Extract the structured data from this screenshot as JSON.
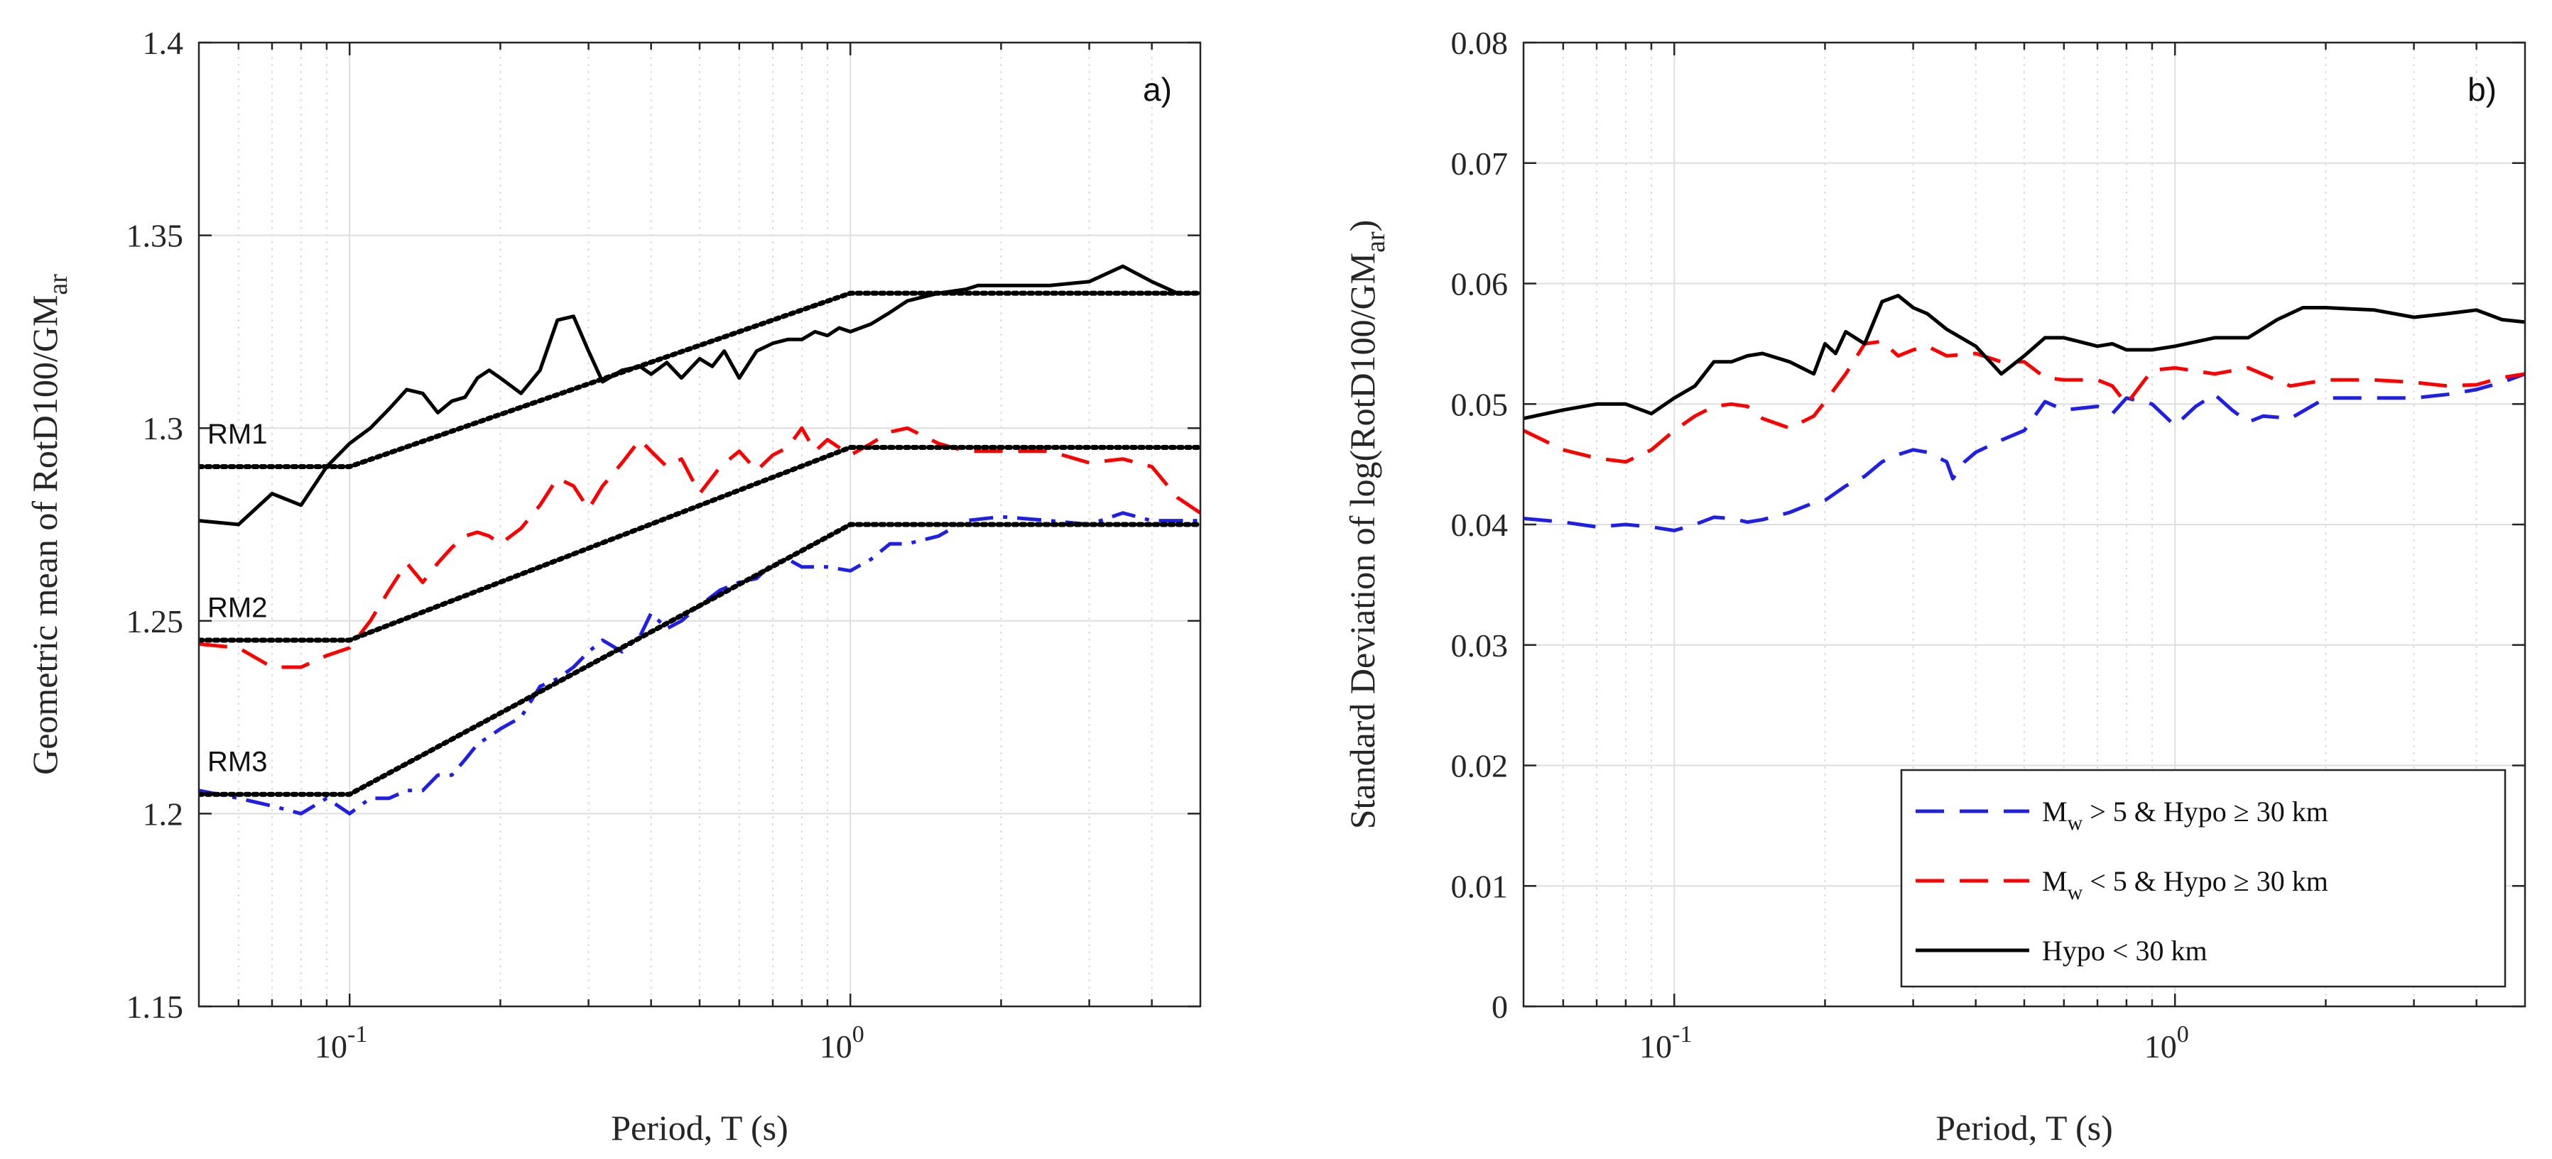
{
  "figure": {
    "panels_note": "two side-by-side log-x line plots"
  },
  "chart_data": [
    {
      "type": "line",
      "panel_label": "a)",
      "xlabel": "Period, T (s)",
      "ylabel_main": "Geometric mean of RotD100/GM",
      "ylabel_sub": "ar",
      "xscale": "log",
      "xlim": [
        0.05,
        5
      ],
      "ylim": [
        1.15,
        1.4
      ],
      "x_ticks": [
        {
          "value": 0.1,
          "base": "10",
          "exp": "-1"
        },
        {
          "value": 1,
          "base": "10",
          "exp": "0"
        }
      ],
      "y_ticks": [
        {
          "value": 1.15,
          "label": "1.15"
        },
        {
          "value": 1.2,
          "label": "1.2"
        },
        {
          "value": 1.25,
          "label": "1.25"
        },
        {
          "value": 1.3,
          "label": "1.3"
        },
        {
          "value": 1.35,
          "label": "1.35"
        },
        {
          "value": 1.4,
          "label": "1.4"
        }
      ],
      "grid": true,
      "series": [
        {
          "name": "Hypo < 30 km",
          "color": "#000000",
          "style": "solid",
          "x": [
            0.05,
            0.06,
            0.07,
            0.08,
            0.09,
            0.1,
            0.11,
            0.12,
            0.13,
            0.14,
            0.15,
            0.16,
            0.17,
            0.18,
            0.19,
            0.2,
            0.22,
            0.24,
            0.26,
            0.28,
            0.3,
            0.32,
            0.35,
            0.38,
            0.4,
            0.43,
            0.46,
            0.5,
            0.53,
            0.56,
            0.6,
            0.65,
            0.7,
            0.75,
            0.8,
            0.85,
            0.9,
            0.95,
            1.0,
            1.1,
            1.2,
            1.3,
            1.5,
            1.7,
            1.8,
            2.0,
            2.5,
            3.0,
            3.5,
            4.0,
            4.5,
            5.0
          ],
          "y": [
            1.276,
            1.275,
            1.283,
            1.28,
            1.29,
            1.296,
            1.3,
            1.305,
            1.31,
            1.309,
            1.304,
            1.307,
            1.308,
            1.313,
            1.315,
            1.313,
            1.309,
            1.315,
            1.328,
            1.329,
            1.32,
            1.312,
            1.315,
            1.316,
            1.314,
            1.317,
            1.313,
            1.318,
            1.316,
            1.32,
            1.313,
            1.32,
            1.322,
            1.323,
            1.323,
            1.325,
            1.324,
            1.326,
            1.325,
            1.327,
            1.33,
            1.333,
            1.335,
            1.336,
            1.337,
            1.337,
            1.337,
            1.338,
            1.342,
            1.338,
            1.335,
            1.335
          ]
        },
        {
          "name": "Mw < 5 & Hypo ≥ 30 km",
          "color": "#ff0000",
          "style": "dashed",
          "x": [
            0.05,
            0.06,
            0.07,
            0.08,
            0.09,
            0.1,
            0.11,
            0.12,
            0.13,
            0.14,
            0.15,
            0.16,
            0.17,
            0.18,
            0.19,
            0.2,
            0.22,
            0.24,
            0.26,
            0.28,
            0.3,
            0.32,
            0.35,
            0.38,
            0.4,
            0.43,
            0.46,
            0.5,
            0.55,
            0.6,
            0.65,
            0.7,
            0.75,
            0.8,
            0.85,
            0.9,
            1.0,
            1.1,
            1.2,
            1.3,
            1.5,
            1.7,
            2.0,
            2.5,
            3.0,
            3.5,
            4.0,
            4.5,
            5.0
          ],
          "y": [
            1.244,
            1.243,
            1.238,
            1.238,
            1.241,
            1.243,
            1.25,
            1.258,
            1.265,
            1.26,
            1.265,
            1.269,
            1.272,
            1.273,
            1.272,
            1.27,
            1.274,
            1.28,
            1.287,
            1.285,
            1.279,
            1.285,
            1.291,
            1.297,
            1.294,
            1.29,
            1.292,
            1.283,
            1.29,
            1.294,
            1.289,
            1.293,
            1.295,
            1.3,
            1.294,
            1.297,
            1.293,
            1.296,
            1.299,
            1.3,
            1.296,
            1.294,
            1.294,
            1.294,
            1.291,
            1.292,
            1.29,
            1.282,
            1.278
          ]
        },
        {
          "name": "Mw > 5 & Hypo ≥ 30 km",
          "color": "#1f1fe6",
          "style": "dashdot",
          "x": [
            0.05,
            0.06,
            0.07,
            0.08,
            0.09,
            0.1,
            0.11,
            0.12,
            0.13,
            0.14,
            0.15,
            0.16,
            0.17,
            0.18,
            0.19,
            0.2,
            0.22,
            0.24,
            0.26,
            0.28,
            0.3,
            0.32,
            0.35,
            0.38,
            0.4,
            0.43,
            0.46,
            0.5,
            0.55,
            0.6,
            0.65,
            0.7,
            0.75,
            0.8,
            0.85,
            0.9,
            1.0,
            1.1,
            1.2,
            1.3,
            1.5,
            1.7,
            2.0,
            2.5,
            3.0,
            3.5,
            4.0,
            4.5,
            5.0
          ],
          "y": [
            1.206,
            1.204,
            1.202,
            1.2,
            1.204,
            1.2,
            1.204,
            1.204,
            1.206,
            1.206,
            1.21,
            1.21,
            1.214,
            1.218,
            1.22,
            1.222,
            1.225,
            1.233,
            1.235,
            1.238,
            1.242,
            1.245,
            1.242,
            1.246,
            1.252,
            1.248,
            1.25,
            1.254,
            1.258,
            1.26,
            1.261,
            1.265,
            1.266,
            1.264,
            1.264,
            1.264,
            1.263,
            1.266,
            1.27,
            1.27,
            1.272,
            1.276,
            1.277,
            1.276,
            1.275,
            1.278,
            1.276,
            1.276,
            1.276
          ]
        },
        {
          "name": "RM1",
          "color": "#000000",
          "style": "dotted",
          "x": [
            0.05,
            0.1,
            1.0,
            5.0
          ],
          "y": [
            1.29,
            1.29,
            1.335,
            1.335
          ]
        },
        {
          "name": "RM2",
          "color": "#000000",
          "style": "dotted",
          "x": [
            0.05,
            0.1,
            1.0,
            5.0
          ],
          "y": [
            1.245,
            1.245,
            1.295,
            1.295
          ]
        },
        {
          "name": "RM3",
          "color": "#000000",
          "style": "dotted",
          "x": [
            0.05,
            0.1,
            1.0,
            5.0
          ],
          "y": [
            1.205,
            1.205,
            1.275,
            1.275
          ]
        }
      ],
      "annotations": [
        {
          "text": "RM1",
          "x": 0.052,
          "y": 1.296
        },
        {
          "text": "RM2",
          "x": 0.052,
          "y": 1.251
        },
        {
          "text": "RM3",
          "x": 0.052,
          "y": 1.211
        }
      ]
    },
    {
      "type": "line",
      "panel_label": "b)",
      "xlabel": "Period, T (s)",
      "ylabel_main": "Standard Deviation of log(RotD100/GM",
      "ylabel_sub": "ar",
      "ylabel_end": ")",
      "xscale": "log",
      "xlim": [
        0.05,
        5
      ],
      "ylim": [
        0,
        0.08
      ],
      "x_ticks": [
        {
          "value": 0.1,
          "base": "10",
          "exp": "-1"
        },
        {
          "value": 1,
          "base": "10",
          "exp": "0"
        }
      ],
      "y_ticks": [
        {
          "value": 0,
          "label": "0"
        },
        {
          "value": 0.01,
          "label": "0.01"
        },
        {
          "value": 0.02,
          "label": "0.02"
        },
        {
          "value": 0.03,
          "label": "0.03"
        },
        {
          "value": 0.04,
          "label": "0.04"
        },
        {
          "value": 0.05,
          "label": "0.05"
        },
        {
          "value": 0.06,
          "label": "0.06"
        },
        {
          "value": 0.07,
          "label": "0.07"
        },
        {
          "value": 0.08,
          "label": "0.08"
        }
      ],
      "grid": true,
      "legend": {
        "position": "bottom-right",
        "entries": [
          {
            "series": "Mw > 5 & Hypo ≥ 30 km",
            "M": "M",
            "sub": "w",
            "rest": " >  5 & Hypo ≥  30 km"
          },
          {
            "series": "Mw < 5 & Hypo ≥ 30 km",
            "M": "M",
            "sub": "w",
            "rest": " <  5 & Hypo ≥  30 km"
          },
          {
            "series": "Hypo < 30 km",
            "M": "",
            "sub": "",
            "rest": "Hypo <  30 km"
          }
        ]
      },
      "series": [
        {
          "name": "Mw > 5 & Hypo ≥ 30 km",
          "color": "#1f1fe6",
          "style": "dashed",
          "x": [
            0.05,
            0.06,
            0.07,
            0.08,
            0.09,
            0.1,
            0.11,
            0.12,
            0.13,
            0.14,
            0.15,
            0.17,
            0.19,
            0.2,
            0.22,
            0.24,
            0.26,
            0.28,
            0.3,
            0.32,
            0.35,
            0.36,
            0.38,
            0.4,
            0.45,
            0.5,
            0.55,
            0.6,
            0.7,
            0.75,
            0.8,
            0.9,
            1.0,
            1.1,
            1.2,
            1.3,
            1.4,
            1.5,
            1.7,
            2.0,
            2.5,
            3.0,
            3.5,
            4.0,
            4.5,
            5.0
          ],
          "y": [
            0.0405,
            0.0402,
            0.0398,
            0.04,
            0.0398,
            0.0395,
            0.04,
            0.0406,
            0.0405,
            0.0402,
            0.0404,
            0.041,
            0.0418,
            0.042,
            0.0432,
            0.044,
            0.0452,
            0.0458,
            0.0462,
            0.046,
            0.0452,
            0.0438,
            0.0452,
            0.046,
            0.047,
            0.0478,
            0.0502,
            0.0495,
            0.0498,
            0.0492,
            0.0505,
            0.05,
            0.0482,
            0.0498,
            0.0508,
            0.0495,
            0.0485,
            0.049,
            0.0488,
            0.0505,
            0.0505,
            0.0505,
            0.0508,
            0.0512,
            0.0518,
            0.0525
          ]
        },
        {
          "name": "Mw < 5 & Hypo ≥ 30 km",
          "color": "#ff0000",
          "style": "dashed",
          "x": [
            0.05,
            0.06,
            0.07,
            0.08,
            0.09,
            0.1,
            0.11,
            0.12,
            0.13,
            0.14,
            0.15,
            0.17,
            0.19,
            0.2,
            0.22,
            0.24,
            0.26,
            0.28,
            0.3,
            0.32,
            0.35,
            0.4,
            0.45,
            0.5,
            0.55,
            0.6,
            0.7,
            0.75,
            0.8,
            0.9,
            1.0,
            1.2,
            1.4,
            1.7,
            2.0,
            2.5,
            3.0,
            3.5,
            4.0,
            4.5,
            5.0
          ],
          "y": [
            0.0478,
            0.0462,
            0.0455,
            0.0452,
            0.0462,
            0.0478,
            0.049,
            0.0498,
            0.05,
            0.0498,
            0.0488,
            0.048,
            0.049,
            0.0502,
            0.0525,
            0.055,
            0.0552,
            0.054,
            0.0545,
            0.0548,
            0.054,
            0.0542,
            0.0535,
            0.0535,
            0.0522,
            0.052,
            0.052,
            0.0515,
            0.05,
            0.0528,
            0.053,
            0.0525,
            0.053,
            0.0515,
            0.052,
            0.052,
            0.0518,
            0.0515,
            0.0516,
            0.0522,
            0.0525
          ]
        },
        {
          "name": "Hypo < 30 km",
          "color": "#000000",
          "style": "solid",
          "x": [
            0.05,
            0.06,
            0.07,
            0.08,
            0.09,
            0.1,
            0.11,
            0.12,
            0.13,
            0.14,
            0.15,
            0.17,
            0.19,
            0.2,
            0.21,
            0.22,
            0.24,
            0.26,
            0.28,
            0.3,
            0.32,
            0.35,
            0.4,
            0.45,
            0.5,
            0.55,
            0.6,
            0.7,
            0.75,
            0.8,
            0.9,
            1.0,
            1.2,
            1.4,
            1.6,
            1.8,
            2.0,
            2.5,
            3.0,
            3.5,
            4.0,
            4.5,
            5.0
          ],
          "y": [
            0.0488,
            0.0495,
            0.05,
            0.05,
            0.0492,
            0.0505,
            0.0515,
            0.0535,
            0.0535,
            0.054,
            0.0542,
            0.0535,
            0.0525,
            0.055,
            0.0542,
            0.056,
            0.055,
            0.0585,
            0.059,
            0.058,
            0.0575,
            0.0562,
            0.0548,
            0.0525,
            0.054,
            0.0555,
            0.0555,
            0.0548,
            0.055,
            0.0545,
            0.0545,
            0.0548,
            0.0555,
            0.0555,
            0.057,
            0.058,
            0.058,
            0.0578,
            0.0572,
            0.0575,
            0.0578,
            0.057,
            0.0568
          ]
        }
      ]
    }
  ]
}
